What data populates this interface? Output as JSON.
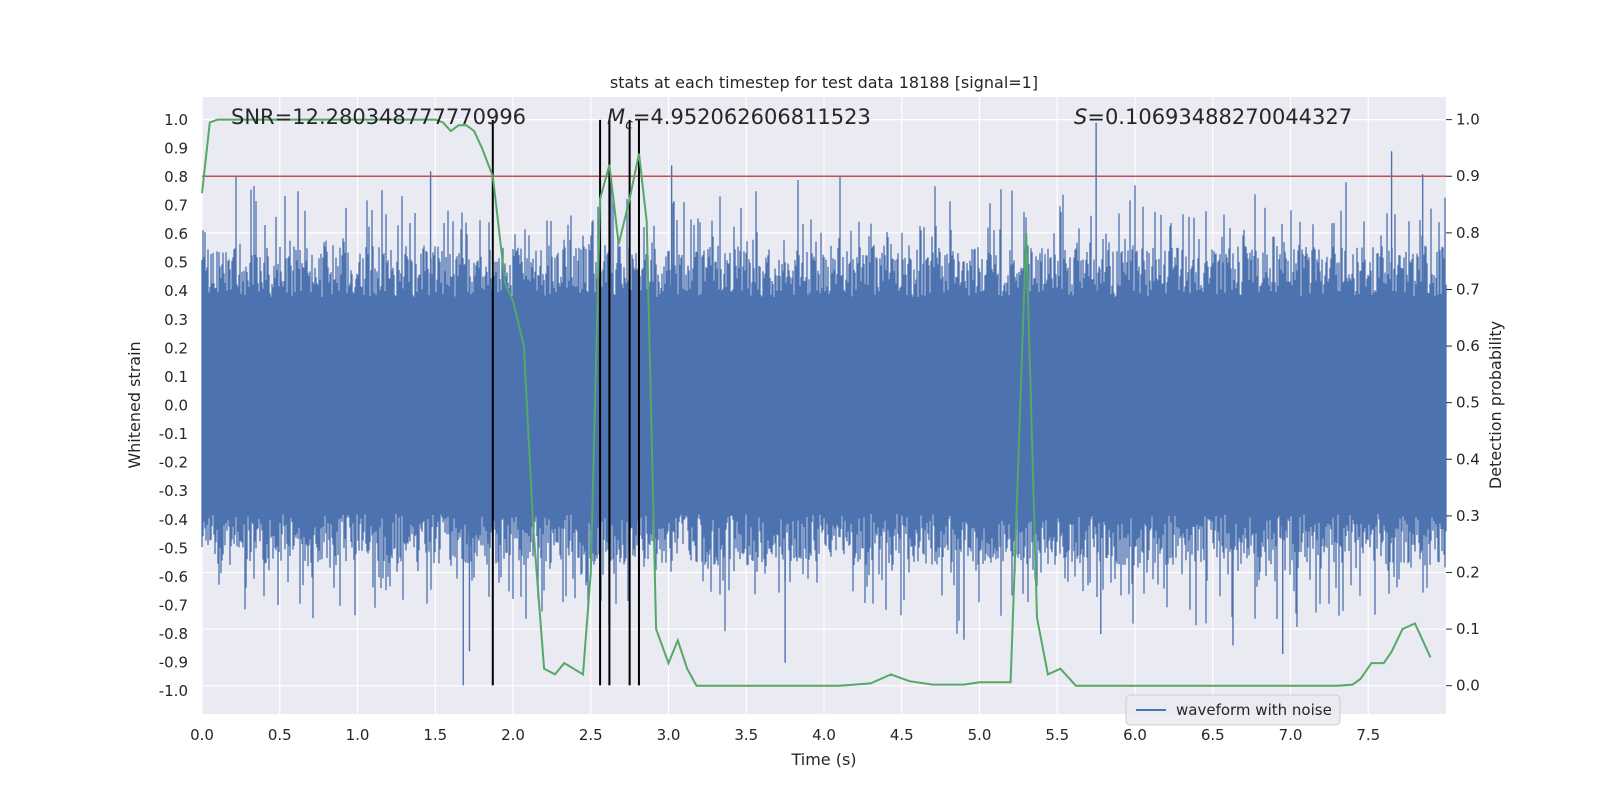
{
  "chart_data": {
    "type": "line",
    "title": "stats at each timestep for test data 18188 [signal=1]",
    "xlabel": "Time (s)",
    "ylabel_left": "Whitened strain",
    "ylabel_right": "Detection probability",
    "xlim": [
      0.0,
      8.0
    ],
    "ylim_left": [
      -1.08,
      1.08
    ],
    "ylim_right": [
      -0.05,
      1.04
    ],
    "grid": true,
    "x_ticks": [
      "0.0",
      "0.5",
      "1.0",
      "1.5",
      "2.0",
      "2.5",
      "3.0",
      "3.5",
      "4.0",
      "4.5",
      "5.0",
      "5.5",
      "6.0",
      "6.5",
      "7.0",
      "7.5"
    ],
    "x_tick_values": [
      0.0,
      0.5,
      1.0,
      1.5,
      2.0,
      2.5,
      3.0,
      3.5,
      4.0,
      4.5,
      5.0,
      5.5,
      6.0,
      6.5,
      7.0,
      7.5
    ],
    "y_left_ticks": [
      "1.0",
      "0.9",
      "0.8",
      "0.7",
      "0.6",
      "0.5",
      "0.4",
      "0.3",
      "0.2",
      "0.1",
      "0.0",
      "-0.1",
      "-0.2",
      "-0.3",
      "-0.4",
      "-0.5",
      "-0.6",
      "-0.7",
      "-0.8",
      "-0.9",
      "-1.0"
    ],
    "y_left_tick_values": [
      1.0,
      0.9,
      0.8,
      0.7,
      0.6,
      0.5,
      0.4,
      0.3,
      0.2,
      0.1,
      0.0,
      -0.1,
      -0.2,
      -0.3,
      -0.4,
      -0.5,
      -0.6,
      -0.7,
      -0.8,
      -0.9,
      -1.0
    ],
    "y_right_ticks": [
      "1.0",
      "0.9",
      "0.8",
      "0.7",
      "0.6",
      "0.5",
      "0.4",
      "0.3",
      "0.2",
      "0.1",
      "0.0"
    ],
    "y_right_tick_values": [
      1.0,
      0.9,
      0.8,
      0.7,
      0.6,
      0.5,
      0.4,
      0.3,
      0.2,
      0.1,
      0.0
    ],
    "annotations": {
      "snr": "SNR=12.280348777770996",
      "mc_symbol": "M",
      "mc_subscript": "c",
      "mc_value": "=4.952062606811523",
      "s_symbol": "S",
      "s_value": "=0.10693488270044327"
    },
    "threshold": {
      "value": 0.9,
      "axis": "right",
      "color": "#c44e52"
    },
    "vertical_markers": [
      1.87,
      2.56,
      2.62,
      2.75,
      2.81
    ],
    "waveform": {
      "name": "waveform with noise",
      "color": "#4c72b0",
      "duration": 8.0,
      "spike_times": [
        1.47,
        1.68,
        1.72,
        2.81,
        3.02,
        3.75,
        4.9,
        5.75,
        5.78,
        6.63,
        6.95,
        7.65,
        7.85
      ],
      "spike_values": [
        0.82,
        -0.98,
        -0.86,
        0.78,
        0.84,
        -0.9,
        -0.82,
        0.99,
        -0.8,
        -0.84,
        -0.87,
        0.89,
        0.81
      ]
    },
    "detection_probability": {
      "color": "#55a868",
      "x": [
        0.0,
        0.05,
        0.1,
        0.3,
        0.6,
        0.9,
        1.2,
        1.4,
        1.5,
        1.55,
        1.6,
        1.65,
        1.7,
        1.75,
        1.8,
        1.87,
        1.95,
        2.0,
        2.07,
        2.13,
        2.2,
        2.27,
        2.33,
        2.39,
        2.45,
        2.5,
        2.56,
        2.62,
        2.68,
        2.75,
        2.81,
        2.86,
        2.92,
        3.0,
        3.06,
        3.12,
        3.18,
        3.3,
        3.5,
        3.7,
        3.9,
        4.1,
        4.3,
        4.43,
        4.55,
        4.7,
        4.9,
        5.0,
        5.1,
        5.2,
        5.25,
        5.3,
        5.37,
        5.44,
        5.52,
        5.62,
        5.8,
        6.2,
        6.6,
        7.0,
        7.3,
        7.4,
        7.45,
        7.52,
        7.56,
        7.6,
        7.65,
        7.72,
        7.8,
        7.9
      ],
      "y": [
        0.87,
        0.995,
        1.0,
        1.0,
        1.0,
        1.0,
        1.0,
        1.0,
        1.0,
        0.995,
        0.98,
        0.99,
        0.99,
        0.98,
        0.95,
        0.9,
        0.71,
        0.68,
        0.6,
        0.28,
        0.03,
        0.02,
        0.04,
        0.03,
        0.02,
        0.2,
        0.86,
        0.92,
        0.78,
        0.86,
        0.94,
        0.82,
        0.1,
        0.04,
        0.08,
        0.03,
        0.0,
        0.0,
        0.0,
        0.0,
        0.0,
        0.0,
        0.004,
        0.02,
        0.008,
        0.002,
        0.002,
        0.006,
        0.006,
        0.006,
        0.4,
        0.8,
        0.12,
        0.02,
        0.03,
        0.0,
        0.0,
        0.0,
        0.0,
        0.0,
        0.0,
        0.002,
        0.012,
        0.04,
        0.04,
        0.04,
        0.06,
        0.1,
        0.11,
        0.05
      ]
    },
    "legend": {
      "label": "waveform with noise",
      "location": "lower-right"
    }
  }
}
